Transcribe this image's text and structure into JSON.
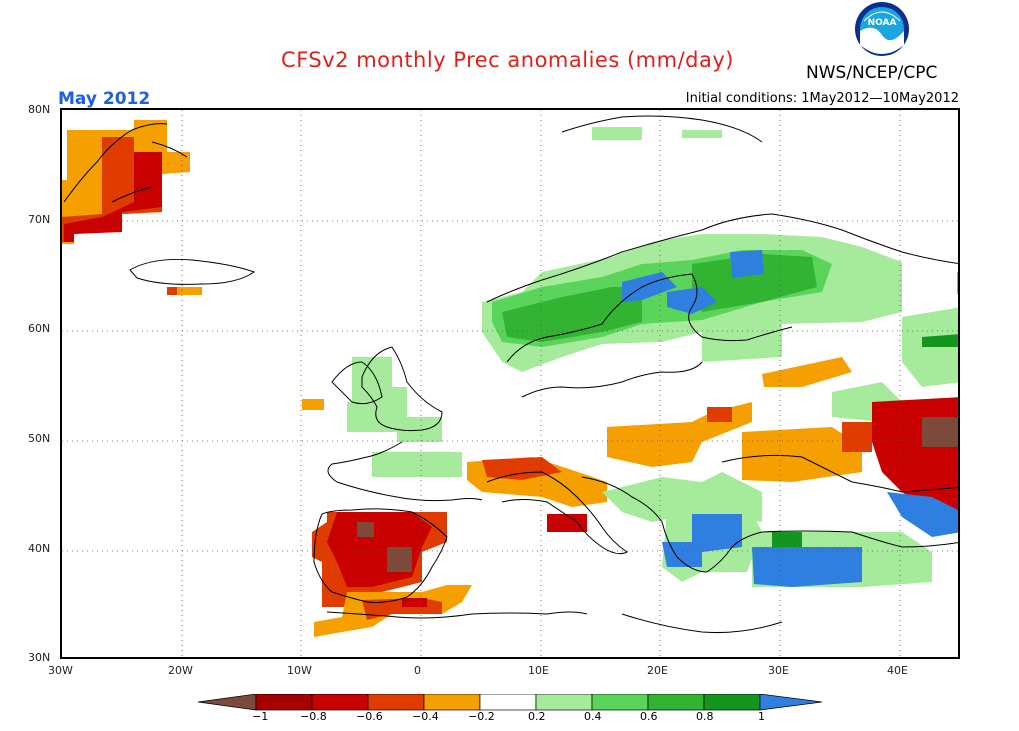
{
  "header": {
    "title": "CFSv2 monthly Prec anomalies (mm/day)",
    "agency": "NWS/NCEP/CPC",
    "month": "May 2012",
    "initial_conditions": "Initial conditions: 1May2012—10May2012",
    "logo_text": "NOAA"
  },
  "colors": {
    "title": "#e0201a",
    "month": "#1f5ee8",
    "bins": [
      "#7b4a3a",
      "#a80000",
      "#c80000",
      "#e03c00",
      "#f5a000",
      "#ffffff",
      "#a6eb9c",
      "#5ad45a",
      "#32b432",
      "#14961e",
      "#2f7fe0"
    ]
  },
  "map": {
    "lat_labels": [
      "80N",
      "70N",
      "60N",
      "50N",
      "40N",
      "30N"
    ],
    "lon_labels": [
      "30W",
      "20W",
      "10W",
      "0",
      "10E",
      "20E",
      "30E",
      "40E"
    ]
  },
  "colorbar": {
    "ticks": [
      "−1",
      "−0.8",
      "−0.6",
      "−0.4",
      "−0.2",
      "0.2",
      "0.4",
      "0.6",
      "0.8",
      "1"
    ]
  }
}
